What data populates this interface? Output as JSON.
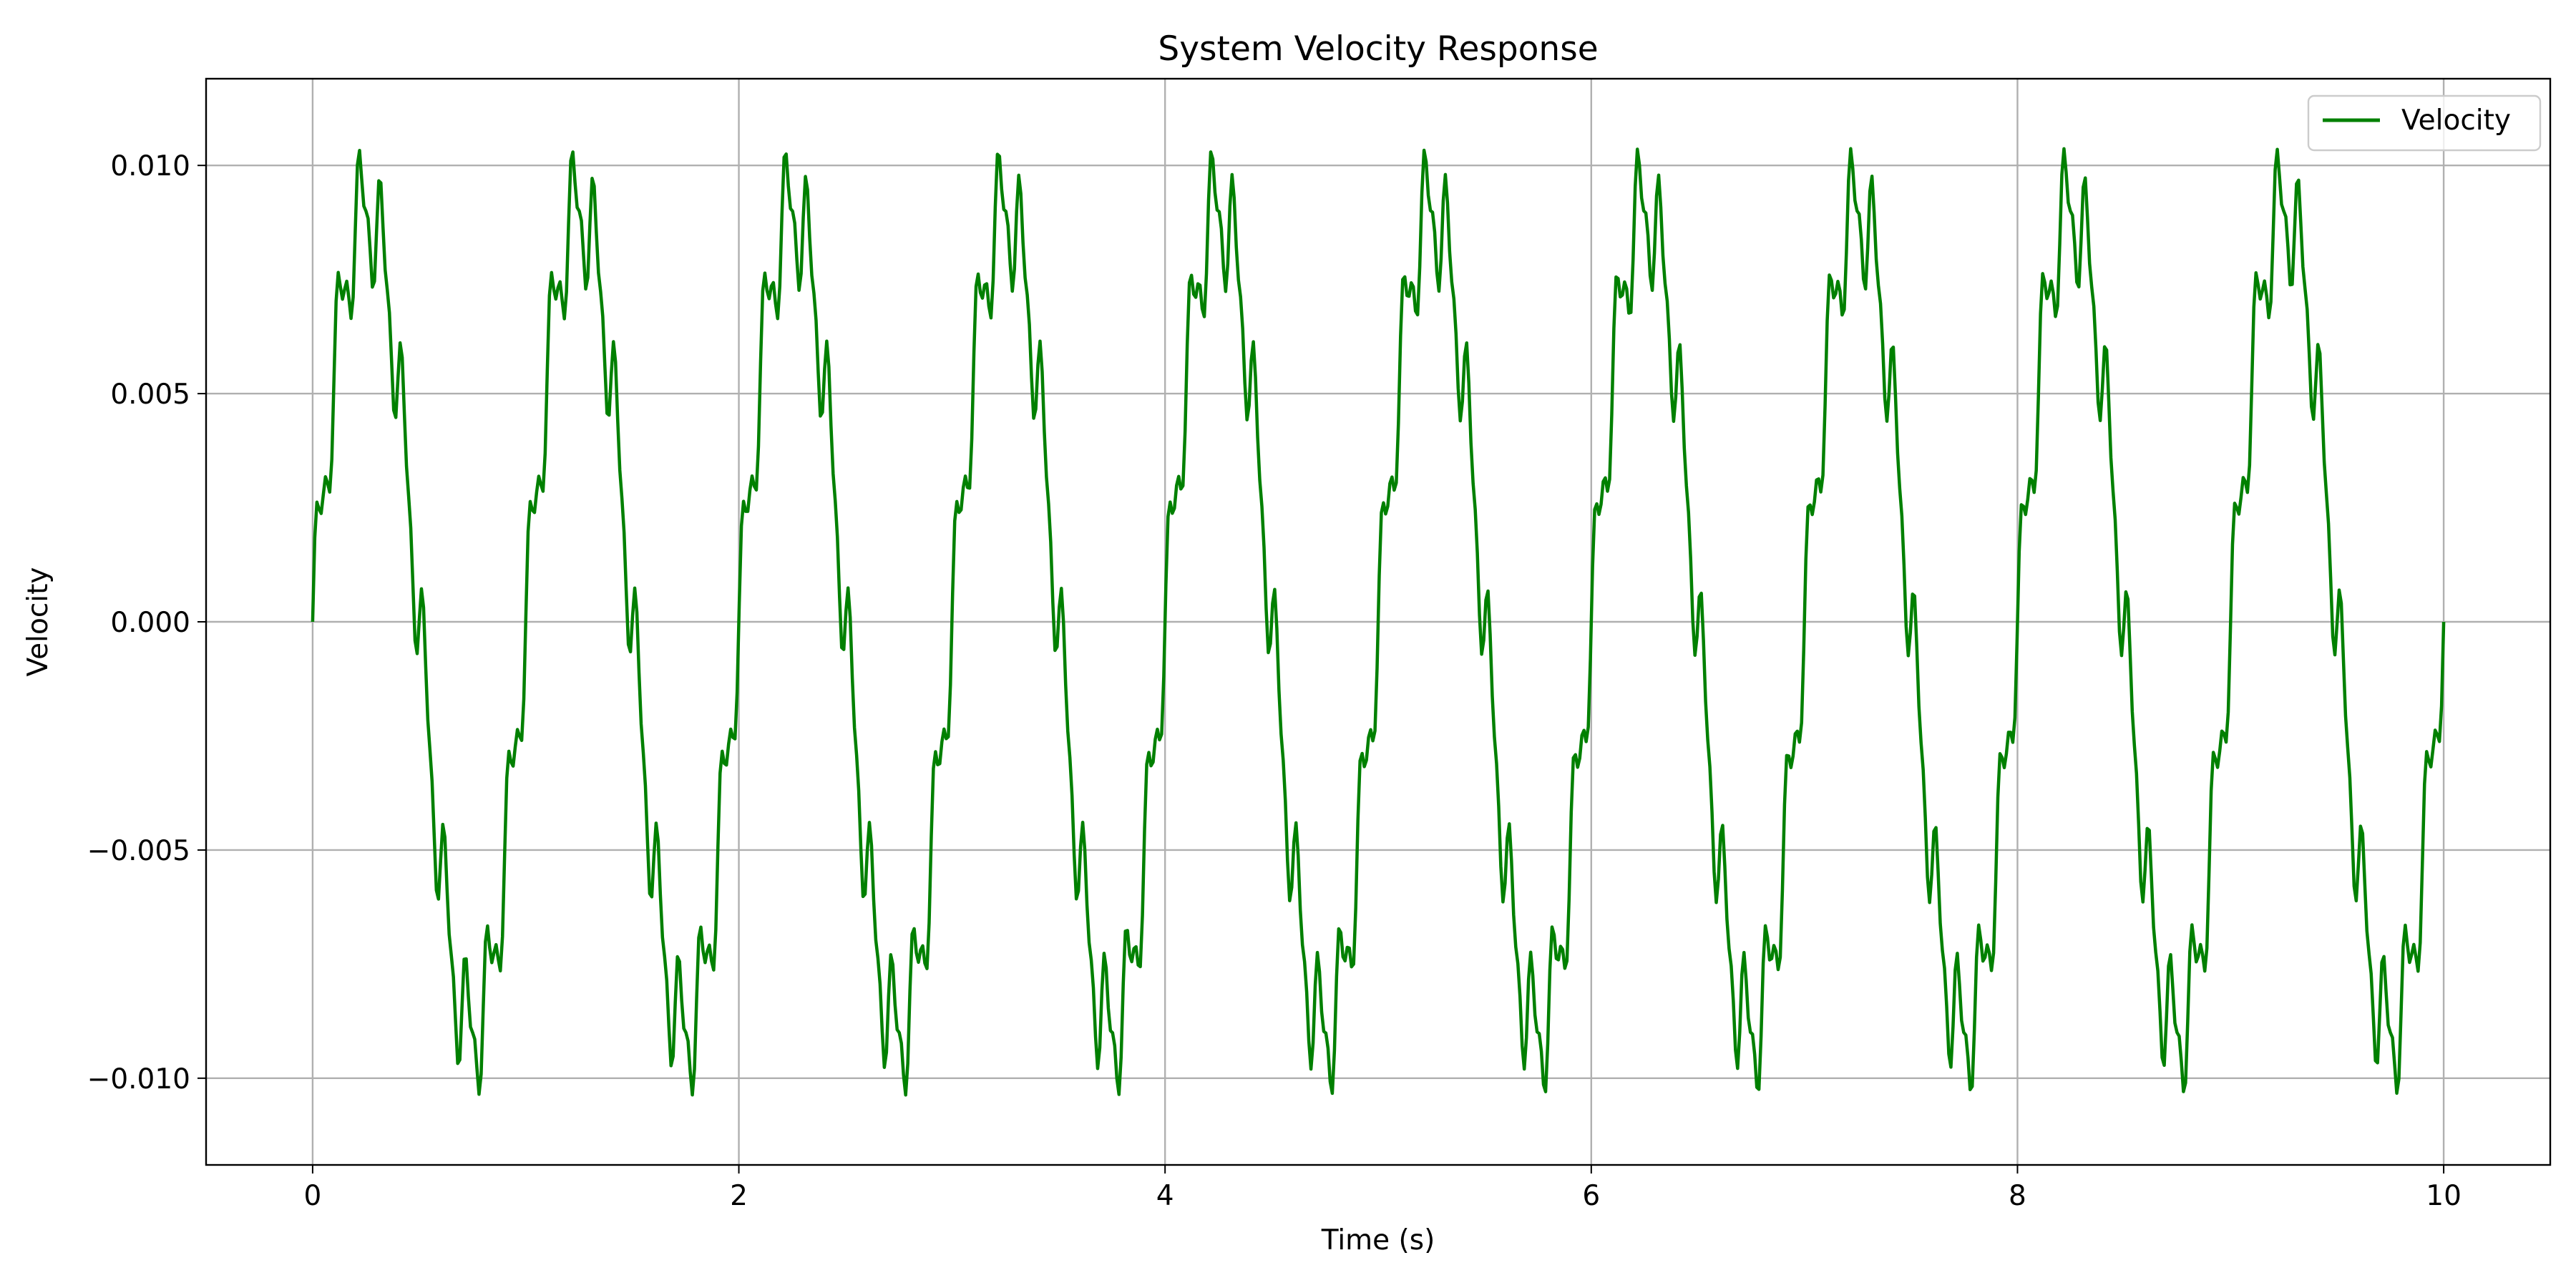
{
  "chart_data": {
    "type": "line",
    "title": "System Velocity Response",
    "xlabel": "Time (s)",
    "ylabel": "Velocity",
    "xlim": [
      -0.5,
      10.5
    ],
    "ylim": [
      -0.0119,
      0.0119
    ],
    "x_ticks": [
      0,
      2,
      4,
      6,
      8,
      10
    ],
    "x_tick_labels": [
      "0",
      "2",
      "4",
      "6",
      "8",
      "10"
    ],
    "y_ticks": [
      -0.01,
      -0.005,
      0.0,
      0.005,
      0.01
    ],
    "y_tick_labels": [
      "−0.010",
      "−0.005",
      "0.000",
      "0.005",
      "0.010"
    ],
    "grid": true,
    "legend": {
      "placement": "top-right",
      "entries": [
        "Velocity"
      ]
    },
    "series": [
      {
        "name": "Velocity",
        "color": "#008000",
        "model": {
          "x_start": 0,
          "x_end": 10,
          "samples": 1000,
          "components": [
            {
              "amplitude": 0.009,
              "frequency_hz": 1.0,
              "phase": 0
            },
            {
              "amplitude": 0.0012,
              "frequency_hz": 10.0,
              "phase": 0
            },
            {
              "amplitude": 0.0006,
              "frequency_hz": 20.0,
              "phase": 0
            }
          ]
        }
      }
    ]
  }
}
